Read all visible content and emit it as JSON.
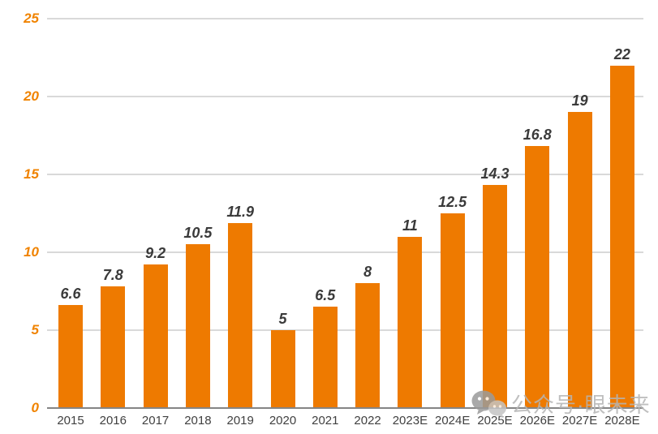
{
  "chart_data": {
    "type": "bar",
    "title": "",
    "xlabel": "",
    "ylabel": "",
    "categories": [
      "2015",
      "2016",
      "2017",
      "2018",
      "2019",
      "2020",
      "2021",
      "2022",
      "2023E",
      "2024E",
      "2025E",
      "2026E",
      "2027E",
      "2028E"
    ],
    "values": [
      6.6,
      7.8,
      9.2,
      10.5,
      11.9,
      5,
      6.5,
      8,
      11,
      12.5,
      14.3,
      16.8,
      19,
      22
    ],
    "value_labels": [
      "6.6",
      "7.8",
      "9.2",
      "10.5",
      "11.9",
      "5",
      "6.5",
      "8",
      "11",
      "12.5",
      "14.3",
      "16.8",
      "19",
      "22"
    ],
    "ylim": [
      0,
      25
    ],
    "yticks": [
      0,
      5,
      10,
      15,
      20,
      25
    ],
    "ytick_labels": [
      "0",
      "5",
      "10",
      "15",
      "20",
      "25"
    ],
    "grid": true,
    "legend": false,
    "colors": {
      "bar": "#EE7A00",
      "ytick_text": "#F08300",
      "value_label_text": "#3A3A3A",
      "xtick_text": "#404040",
      "gridline": "#D9D9D9",
      "axis_line": "#858585"
    }
  },
  "watermark": {
    "icon": "wechat-icon",
    "text": "公众号·眼未来",
    "color": "#B5B5B5"
  }
}
